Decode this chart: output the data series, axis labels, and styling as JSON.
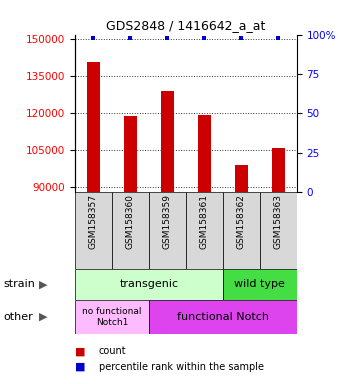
{
  "title": "GDS2848 / 1416642_a_at",
  "samples": [
    "GSM158357",
    "GSM158360",
    "GSM158359",
    "GSM158361",
    "GSM158362",
    "GSM158363"
  ],
  "counts": [
    141000,
    119000,
    129000,
    119500,
    99000,
    106000
  ],
  "ylim": [
    88000,
    152000
  ],
  "yticks_left": [
    90000,
    105000,
    120000,
    135000,
    150000
  ],
  "yticks_right": [
    0,
    25,
    50,
    75,
    100
  ],
  "bar_color": "#cc0000",
  "percentile_color": "#0000cc",
  "bg_color": "#d8d8d8",
  "transgenic_color": "#ccffcc",
  "wildtype_color": "#44dd44",
  "nofunc_color": "#ffbbff",
  "func_color": "#dd44ee",
  "legend_count_color": "#cc0000",
  "legend_pct_color": "#0000cc",
  "bar_width": 0.35
}
